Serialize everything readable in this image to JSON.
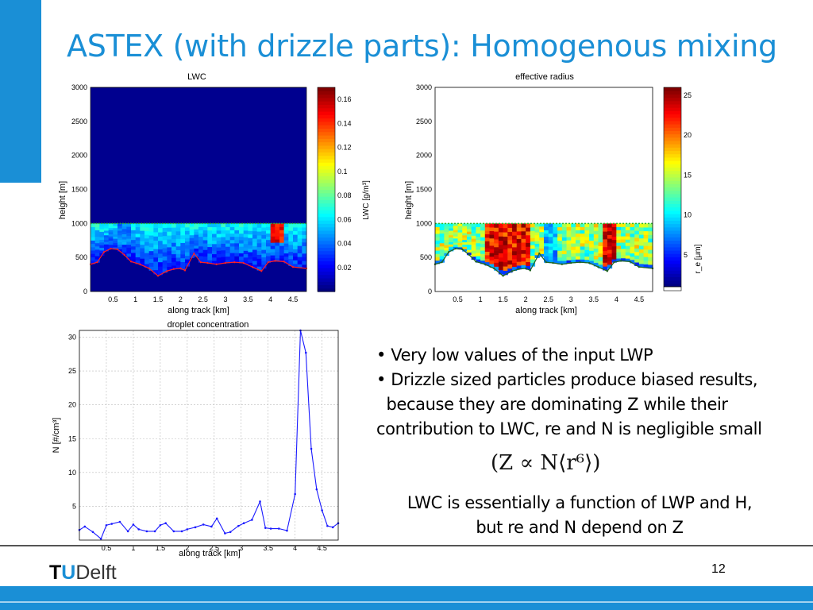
{
  "slide": {
    "title": "ASTEX (with drizzle parts): Homogenous mixing",
    "bullets": [
      "• Very low values of the input LWP",
      "• Drizzle sized particles produce biased results,",
      "  because they are dominating Z while their",
      "contribution to LWC, re and N is negligible small"
    ],
    "formula": "(Z ∝ N⟨r⁶⟩)",
    "conclusion_line1": "LWC is essentially a function of LWP and H,",
    "conclusion_line2": "but re and N depend on Z",
    "page_number": "12",
    "logo": {
      "t": "T",
      "u": "U",
      "rest": "Delft"
    },
    "colors": {
      "accent": "#1a8fd6",
      "plot_bg": "#00008f"
    }
  },
  "chart_data": [
    {
      "type": "heatmap",
      "title": "LWC",
      "xlabel": "along track [km]",
      "ylabel": "height [m]",
      "x_ticks": [
        "0.5",
        "1",
        "1.5",
        "2",
        "2.5",
        "3",
        "3.5",
        "4",
        "4.5"
      ],
      "y_ticks": [
        "0",
        "500",
        "1000",
        "1500",
        "2000",
        "2500",
        "3000"
      ],
      "xlim": [
        0,
        4.8
      ],
      "ylim": [
        0,
        3000
      ],
      "colorbar_label": "LWC [g/m³]",
      "colorbar_ticks": [
        "0.02",
        "0.04",
        "0.06",
        "0.08",
        "0.1",
        "0.12",
        "0.14",
        "0.16"
      ],
      "colorbar_range": [
        0,
        0.17
      ],
      "cloud_top": 1000,
      "cloud_base": [
        {
          "x": 0.0,
          "y": 400
        },
        {
          "x": 0.15,
          "y": 430
        },
        {
          "x": 0.3,
          "y": 580
        },
        {
          "x": 0.45,
          "y": 630
        },
        {
          "x": 0.6,
          "y": 620
        },
        {
          "x": 0.75,
          "y": 540
        },
        {
          "x": 0.9,
          "y": 440
        },
        {
          "x": 1.1,
          "y": 400
        },
        {
          "x": 1.3,
          "y": 340
        },
        {
          "x": 1.5,
          "y": 230
        },
        {
          "x": 1.7,
          "y": 300
        },
        {
          "x": 1.85,
          "y": 330
        },
        {
          "x": 2.0,
          "y": 340
        },
        {
          "x": 2.1,
          "y": 310
        },
        {
          "x": 2.3,
          "y": 560
        },
        {
          "x": 2.45,
          "y": 430
        },
        {
          "x": 2.6,
          "y": 420
        },
        {
          "x": 2.8,
          "y": 400
        },
        {
          "x": 3.0,
          "y": 420
        },
        {
          "x": 3.2,
          "y": 430
        },
        {
          "x": 3.4,
          "y": 420
        },
        {
          "x": 3.6,
          "y": 360
        },
        {
          "x": 3.8,
          "y": 300
        },
        {
          "x": 3.95,
          "y": 430
        },
        {
          "x": 4.1,
          "y": 450
        },
        {
          "x": 4.3,
          "y": 440
        },
        {
          "x": 4.5,
          "y": 360
        },
        {
          "x": 4.8,
          "y": 340
        }
      ]
    },
    {
      "type": "heatmap",
      "title": "effective radius",
      "xlabel": "along track [km]",
      "ylabel": "height [m]",
      "x_ticks": [
        "0.5",
        "1",
        "1.5",
        "2",
        "2.5",
        "3",
        "3.5",
        "4",
        "4.5"
      ],
      "y_ticks": [
        "0",
        "500",
        "1000",
        "1500",
        "2000",
        "2500",
        "3000"
      ],
      "xlim": [
        0,
        4.8
      ],
      "ylim": [
        0,
        3000
      ],
      "colorbar_label": "r_e [μm]",
      "colorbar_ticks": [
        "5",
        "10",
        "15",
        "20",
        "25"
      ],
      "colorbar_range": [
        1,
        26
      ],
      "cloud_top": 1000,
      "cloud_base": [
        {
          "x": 0.0,
          "y": 400
        },
        {
          "x": 0.15,
          "y": 430
        },
        {
          "x": 0.3,
          "y": 580
        },
        {
          "x": 0.45,
          "y": 630
        },
        {
          "x": 0.6,
          "y": 620
        },
        {
          "x": 0.75,
          "y": 540
        },
        {
          "x": 0.9,
          "y": 440
        },
        {
          "x": 1.1,
          "y": 400
        },
        {
          "x": 1.3,
          "y": 340
        },
        {
          "x": 1.5,
          "y": 230
        },
        {
          "x": 1.7,
          "y": 300
        },
        {
          "x": 1.85,
          "y": 330
        },
        {
          "x": 2.0,
          "y": 340
        },
        {
          "x": 2.1,
          "y": 310
        },
        {
          "x": 2.3,
          "y": 560
        },
        {
          "x": 2.45,
          "y": 430
        },
        {
          "x": 2.6,
          "y": 420
        },
        {
          "x": 2.8,
          "y": 400
        },
        {
          "x": 3.0,
          "y": 420
        },
        {
          "x": 3.2,
          "y": 430
        },
        {
          "x": 3.4,
          "y": 420
        },
        {
          "x": 3.6,
          "y": 360
        },
        {
          "x": 3.8,
          "y": 300
        },
        {
          "x": 3.95,
          "y": 430
        },
        {
          "x": 4.1,
          "y": 450
        },
        {
          "x": 4.3,
          "y": 440
        },
        {
          "x": 4.5,
          "y": 360
        },
        {
          "x": 4.8,
          "y": 340
        }
      ]
    },
    {
      "type": "line",
      "title": "droplet concentration",
      "xlabel": "along track [km]",
      "ylabel": "N [#/cm³]",
      "x_ticks": [
        "0.5",
        "1",
        "1.5",
        "2",
        "2.5",
        "3",
        "3.5",
        "4",
        "4.5"
      ],
      "y_ticks": [
        "5",
        "10",
        "15",
        "20",
        "25",
        "30"
      ],
      "xlim": [
        0,
        4.8
      ],
      "ylim": [
        0,
        31
      ],
      "grid": true,
      "x": [
        0.0,
        0.1,
        0.25,
        0.4,
        0.5,
        0.6,
        0.75,
        0.9,
        1.0,
        1.1,
        1.25,
        1.4,
        1.5,
        1.6,
        1.75,
        1.9,
        2.0,
        2.15,
        2.3,
        2.45,
        2.55,
        2.7,
        2.8,
        2.95,
        3.05,
        3.2,
        3.35,
        3.45,
        3.55,
        3.7,
        3.85,
        4.0,
        4.1,
        4.2,
        4.3,
        4.4,
        4.5,
        4.6,
        4.7,
        4.8
      ],
      "values": [
        1.5,
        2.0,
        1.2,
        0.2,
        2.2,
        2.4,
        2.7,
        1.3,
        2.3,
        1.6,
        1.3,
        1.3,
        2.2,
        2.5,
        1.3,
        1.3,
        1.6,
        1.9,
        2.3,
        2.0,
        3.2,
        1.0,
        1.2,
        2.1,
        2.5,
        3.0,
        5.7,
        1.8,
        1.7,
        1.7,
        1.4,
        6.8,
        31.0,
        27.7,
        13.5,
        7.5,
        4.4,
        2.1,
        1.9,
        2.5
      ]
    }
  ]
}
